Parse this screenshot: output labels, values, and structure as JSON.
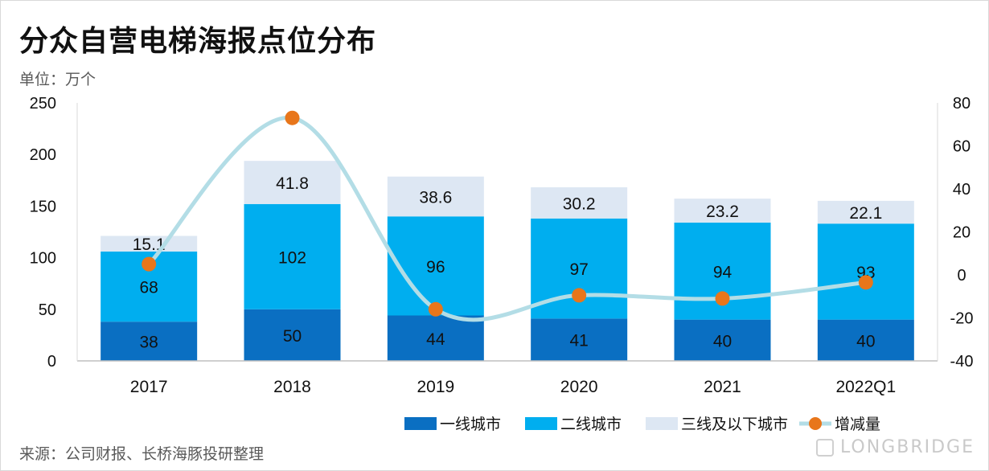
{
  "header": {
    "title": "分众自营电梯海报点位分布",
    "unit": "单位：万个"
  },
  "footer": {
    "source": "来源：公司财报、长桥海豚投研整理",
    "brand": "LONGBRIDGE"
  },
  "colors": {
    "tier1": "#0a6fc2",
    "tier2": "#00aeef",
    "tier3": "#dde7f3",
    "line": "#b3dde6",
    "marker": "#e8761b"
  },
  "chart_data": {
    "type": "bar",
    "stacked": true,
    "categories": [
      "2017",
      "2018",
      "2019",
      "2020",
      "2021",
      "2022Q1"
    ],
    "series": [
      {
        "name": "一线城市",
        "values": [
          38,
          50,
          44,
          41,
          40,
          40
        ],
        "labels": [
          "38",
          "50",
          "44",
          "41",
          "40",
          "40"
        ]
      },
      {
        "name": "二线城市",
        "values": [
          68,
          102,
          96,
          97,
          94,
          93
        ],
        "labels": [
          "68",
          "102",
          "96",
          "97",
          "94",
          "93"
        ]
      },
      {
        "name": "三线及以下城市",
        "values": [
          15.1,
          41.8,
          38.6,
          30.2,
          23.2,
          22.1
        ],
        "labels": [
          "15.1",
          "41.8",
          "38.6",
          "30.2",
          "23.2",
          "22.1"
        ]
      }
    ],
    "line_series": {
      "name": "增减量",
      "axis": "right",
      "values": [
        5,
        73,
        -16,
        -9.5,
        -11,
        -3.5
      ]
    },
    "left_axis": {
      "ylim": [
        0,
        250
      ],
      "ticks": [
        "0",
        "50",
        "100",
        "150",
        "200",
        "250"
      ]
    },
    "right_axis": {
      "ylim": [
        -40,
        80
      ],
      "ticks": [
        "-40",
        "-20",
        "0",
        "20",
        "40",
        "60",
        "80"
      ]
    },
    "legend_position": "bottom-right",
    "grid": false
  }
}
